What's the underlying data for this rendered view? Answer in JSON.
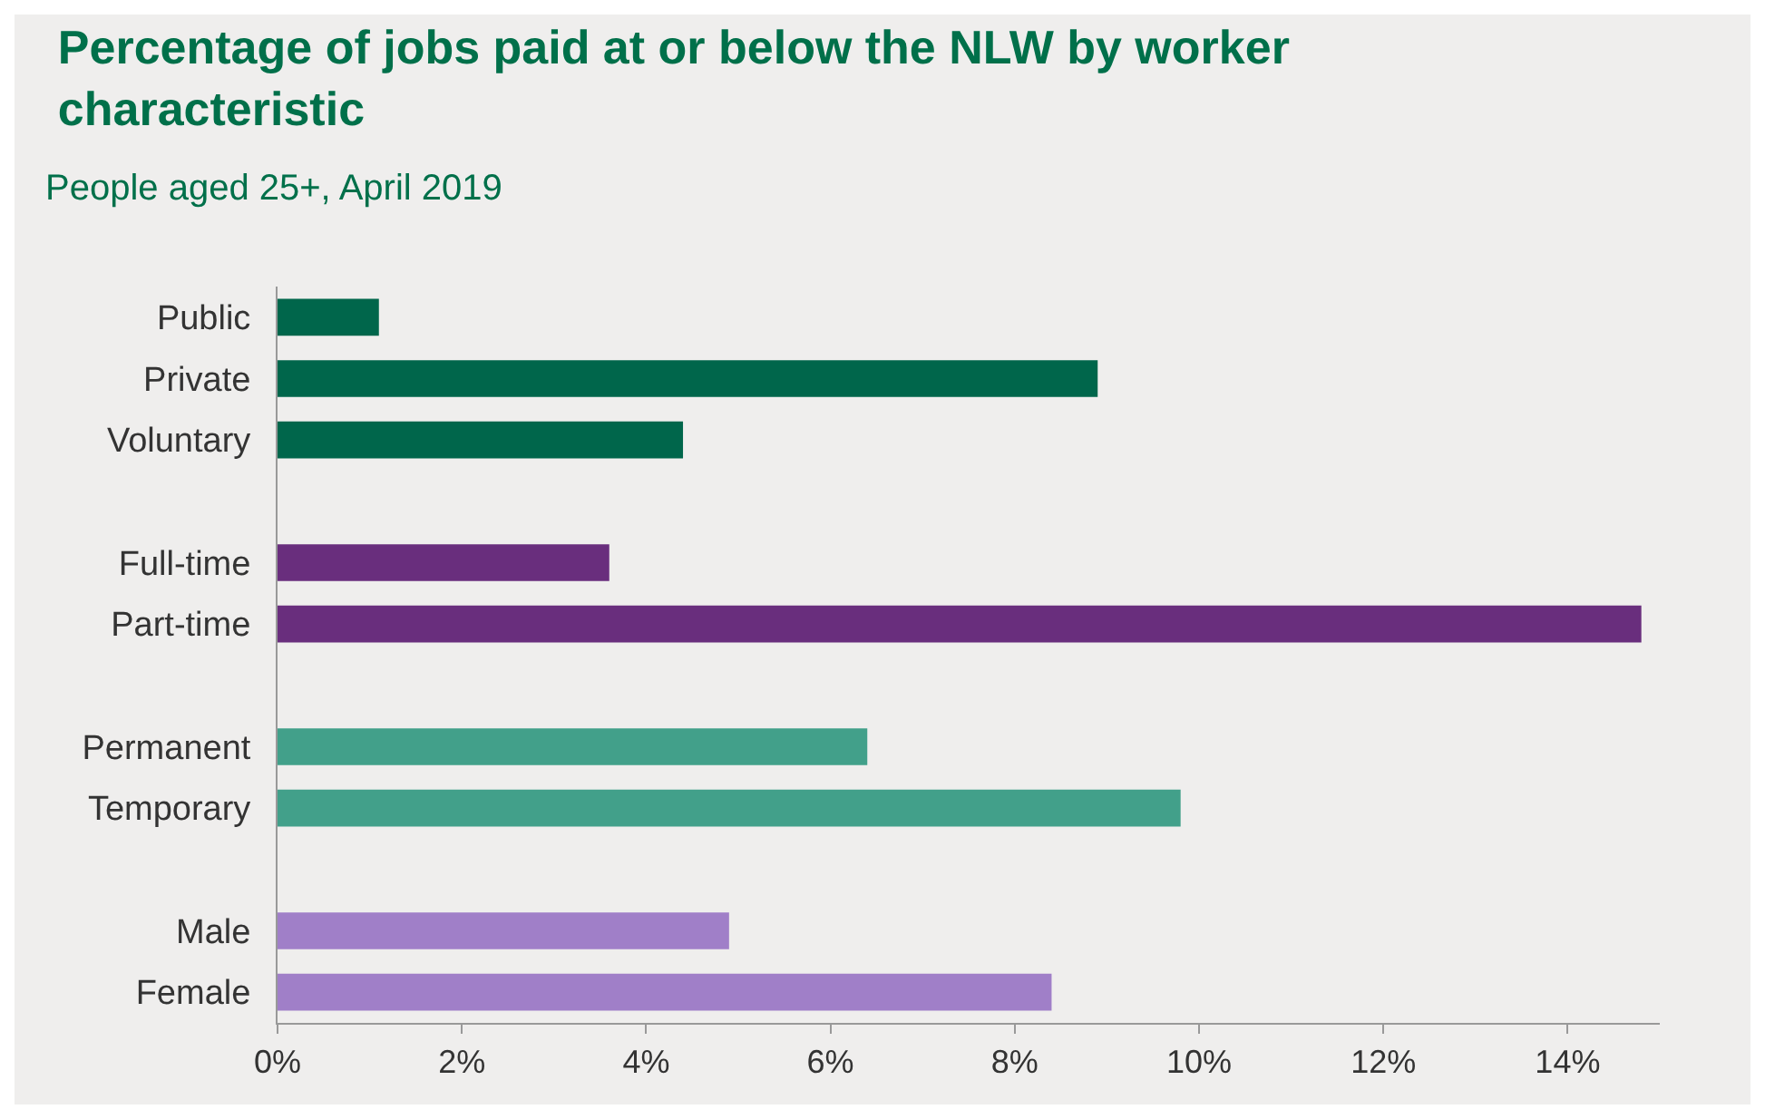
{
  "chart_data": {
    "type": "bar",
    "orientation": "horizontal",
    "title": "Percentage of jobs paid at or below the NLW by worker characteristic",
    "subtitle": "People aged 25+, April 2019",
    "categories": [
      "Public",
      "Private",
      "Voluntary",
      null,
      "Full-time",
      "Part-time",
      null,
      "Permanent",
      "Temporary",
      null,
      "Male",
      "Female"
    ],
    "values": [
      1.1,
      8.9,
      4.4,
      null,
      3.6,
      14.8,
      null,
      6.4,
      9.8,
      null,
      4.9,
      8.4
    ],
    "colors": [
      "#00664b",
      "#00664b",
      "#00664b",
      null,
      "#692e7d",
      "#692e7d",
      null,
      "#42a08a",
      "#42a08a",
      null,
      "#a07fc8",
      "#a07fc8"
    ],
    "xlim": [
      0,
      15
    ],
    "xticks": [
      {
        "value": 0,
        "label": "0%"
      },
      {
        "value": 2,
        "label": "2%"
      },
      {
        "value": 4,
        "label": "4%"
      },
      {
        "value": 6,
        "label": "6%"
      },
      {
        "value": 8,
        "label": "8%"
      },
      {
        "value": 10,
        "label": "10%"
      },
      {
        "value": 12,
        "label": "12%"
      },
      {
        "value": 14,
        "label": "14%"
      }
    ],
    "grid": false,
    "legend": false
  }
}
